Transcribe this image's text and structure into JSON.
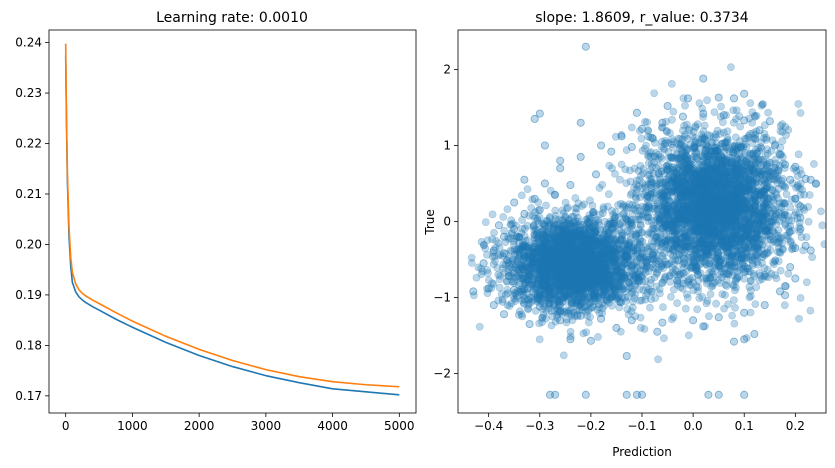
{
  "chart_data": [
    {
      "type": "line",
      "title": "Learning rate: 0.0010",
      "xlabel": "",
      "ylabel": "",
      "xlim": [
        -250,
        5250
      ],
      "ylim": [
        0.1666,
        0.2425
      ],
      "xticks": [
        0,
        1000,
        2000,
        3000,
        4000,
        5000
      ],
      "yticks": [
        0.17,
        0.18,
        0.19,
        0.2,
        0.21,
        0.22,
        0.23,
        0.24
      ],
      "ytick_labels": [
        "0.17",
        "0.18",
        "0.19",
        "0.20",
        "0.21",
        "0.22",
        "0.23",
        "0.24"
      ],
      "grid": false,
      "series": [
        {
          "color": "#1f77b4",
          "x": [
            0,
            10,
            25,
            50,
            75,
            100,
            150,
            200,
            250,
            300,
            400,
            500,
            750,
            1000,
            1500,
            2000,
            2500,
            3000,
            3500,
            4000,
            4500,
            5000
          ],
          "y": [
            0.2375,
            0.226,
            0.213,
            0.2015,
            0.1958,
            0.1925,
            0.1906,
            0.1896,
            0.189,
            0.1885,
            0.1877,
            0.187,
            0.1852,
            0.1836,
            0.1806,
            0.178,
            0.1758,
            0.174,
            0.1726,
            0.1714,
            0.1708,
            0.1702
          ]
        },
        {
          "color": "#ff7f0e",
          "x": [
            0,
            10,
            25,
            50,
            75,
            100,
            150,
            200,
            250,
            300,
            400,
            500,
            750,
            1000,
            1500,
            2000,
            2500,
            3000,
            3500,
            4000,
            4500,
            5000
          ],
          "y": [
            0.2398,
            0.2275,
            0.2145,
            0.2035,
            0.1975,
            0.1945,
            0.1922,
            0.191,
            0.1903,
            0.1898,
            0.189,
            0.1883,
            0.1865,
            0.1848,
            0.1818,
            0.1792,
            0.177,
            0.1752,
            0.1738,
            0.1728,
            0.1722,
            0.1718
          ]
        }
      ]
    },
    {
      "type": "scatter",
      "title": "slope: 1.8609, r_value: 0.3734",
      "xlabel": "Prediction",
      "ylabel": "True",
      "xlim": [
        -0.46,
        0.26
      ],
      "ylim": [
        -2.52,
        2.52
      ],
      "xticks": [
        -0.4,
        -0.3,
        -0.2,
        -0.1,
        0.0,
        0.1,
        0.2
      ],
      "xtick_labels": [
        "−0.4",
        "−0.3",
        "−0.2",
        "−0.1",
        "0.0",
        "0.1",
        "0.2"
      ],
      "yticks": [
        -2,
        -1,
        0,
        1,
        2
      ],
      "ytick_labels": [
        "−2",
        "−1",
        "0",
        "1",
        "2"
      ],
      "grid": false,
      "color": "#1f77b4",
      "alpha": 0.3,
      "points": [
        [
          -0.21,
          2.3
        ],
        [
          0.02,
          1.88
        ],
        [
          -0.3,
          1.42
        ],
        [
          -0.31,
          1.35
        ],
        [
          -0.4,
          -0.88
        ],
        [
          -0.43,
          -0.92
        ],
        [
          -0.28,
          -2.28
        ],
        [
          -0.27,
          -2.28
        ],
        [
          -0.21,
          -2.28
        ],
        [
          -0.13,
          -2.28
        ],
        [
          -0.11,
          -2.28
        ],
        [
          -0.1,
          -2.28
        ],
        [
          0.03,
          -2.28
        ],
        [
          0.05,
          -2.28
        ],
        [
          0.1,
          -2.28
        ],
        [
          -0.13,
          -1.77
        ],
        [
          -0.2,
          -1.57
        ],
        [
          -0.24,
          -1.55
        ],
        [
          0.1,
          -1.55
        ],
        [
          0.08,
          -1.58
        ],
        [
          0.12,
          -1.48
        ],
        [
          0.18,
          -0.97
        ],
        [
          0.23,
          -0.38
        ],
        [
          0.22,
          -0.32
        ],
        [
          0.23,
          0.55
        ],
        [
          0.24,
          0.5
        ],
        [
          0.22,
          0.56
        ],
        [
          0.2,
          0.72
        ],
        [
          0.17,
          0.88
        ],
        [
          0.15,
          1.32
        ],
        [
          0.1,
          1.68
        ],
        [
          0.08,
          1.62
        ],
        [
          0.05,
          1.63
        ],
        [
          -0.01,
          1.62
        ],
        [
          -0.05,
          1.52
        ],
        [
          -0.11,
          1.43
        ],
        [
          -0.22,
          1.3
        ],
        [
          -0.29,
          1.0
        ],
        [
          -0.33,
          0.55
        ],
        [
          -0.35,
          0.25
        ],
        [
          -0.38,
          -0.05
        ],
        [
          -0.39,
          -0.38
        ],
        [
          -0.41,
          -0.55
        ],
        [
          -0.39,
          -1.1
        ],
        [
          -0.37,
          -1.22
        ],
        [
          -0.32,
          -1.35
        ],
        [
          -0.26,
          -1.3
        ],
        [
          -0.15,
          -1.4
        ],
        [
          -0.07,
          -1.45
        ],
        [
          0.02,
          -1.38
        ],
        [
          0.18,
          -0.85
        ],
        [
          0.2,
          -0.75
        ],
        [
          0.21,
          0.2
        ],
        [
          0.21,
          0.05
        ],
        [
          -0.36,
          -0.58
        ],
        [
          -0.37,
          -0.42
        ],
        [
          -0.34,
          -0.28
        ],
        [
          -0.36,
          -0.72
        ],
        [
          -0.35,
          -0.9
        ],
        [
          -0.33,
          -1.02
        ],
        [
          -0.3,
          -1.12
        ],
        [
          -0.26,
          -1.18
        ],
        [
          -0.22,
          -1.24
        ],
        [
          -0.18,
          -1.28
        ],
        [
          -0.12,
          -1.3
        ],
        [
          -0.06,
          -1.33
        ],
        [
          0.0,
          -1.3
        ],
        [
          0.05,
          -1.26
        ],
        [
          0.1,
          -1.2
        ],
        [
          0.14,
          -1.1
        ],
        [
          0.17,
          -0.92
        ],
        [
          0.19,
          -0.6
        ],
        [
          0.2,
          -0.35
        ],
        [
          0.21,
          -0.1
        ],
        [
          0.2,
          0.3
        ],
        [
          0.19,
          0.55
        ],
        [
          0.18,
          0.75
        ],
        [
          0.16,
          1.0
        ],
        [
          0.13,
          1.2
        ],
        [
          0.1,
          1.33
        ],
        [
          0.06,
          1.4
        ],
        [
          0.02,
          1.42
        ],
        [
          -0.02,
          1.38
        ],
        [
          -0.06,
          1.3
        ],
        [
          -0.1,
          1.22
        ],
        [
          -0.14,
          1.12
        ],
        [
          -0.18,
          1.0
        ],
        [
          -0.22,
          0.85
        ],
        [
          -0.26,
          0.7
        ],
        [
          -0.29,
          0.5
        ],
        [
          -0.31,
          0.3
        ],
        [
          -0.33,
          0.1
        ],
        [
          -0.35,
          -0.1
        ],
        [
          -0.37,
          -0.2
        ],
        [
          -0.26,
          0.8
        ],
        [
          -0.19,
          0.62
        ],
        [
          -0.24,
          0.48
        ],
        [
          -0.16,
          0.92
        ],
        [
          -0.12,
          0.98
        ],
        [
          -0.08,
          1.1
        ],
        [
          -0.27,
          0.35
        ],
        [
          -0.3,
          0.15
        ]
      ],
      "cloud": {
        "n": 6000,
        "components": [
          {
            "w": 0.45,
            "mx": -0.23,
            "my": -0.55,
            "sx": 0.065,
            "sy": 0.3
          },
          {
            "w": 0.55,
            "mx": 0.04,
            "my": 0.2,
            "sx": 0.07,
            "sy": 0.48
          }
        ]
      }
    }
  ]
}
